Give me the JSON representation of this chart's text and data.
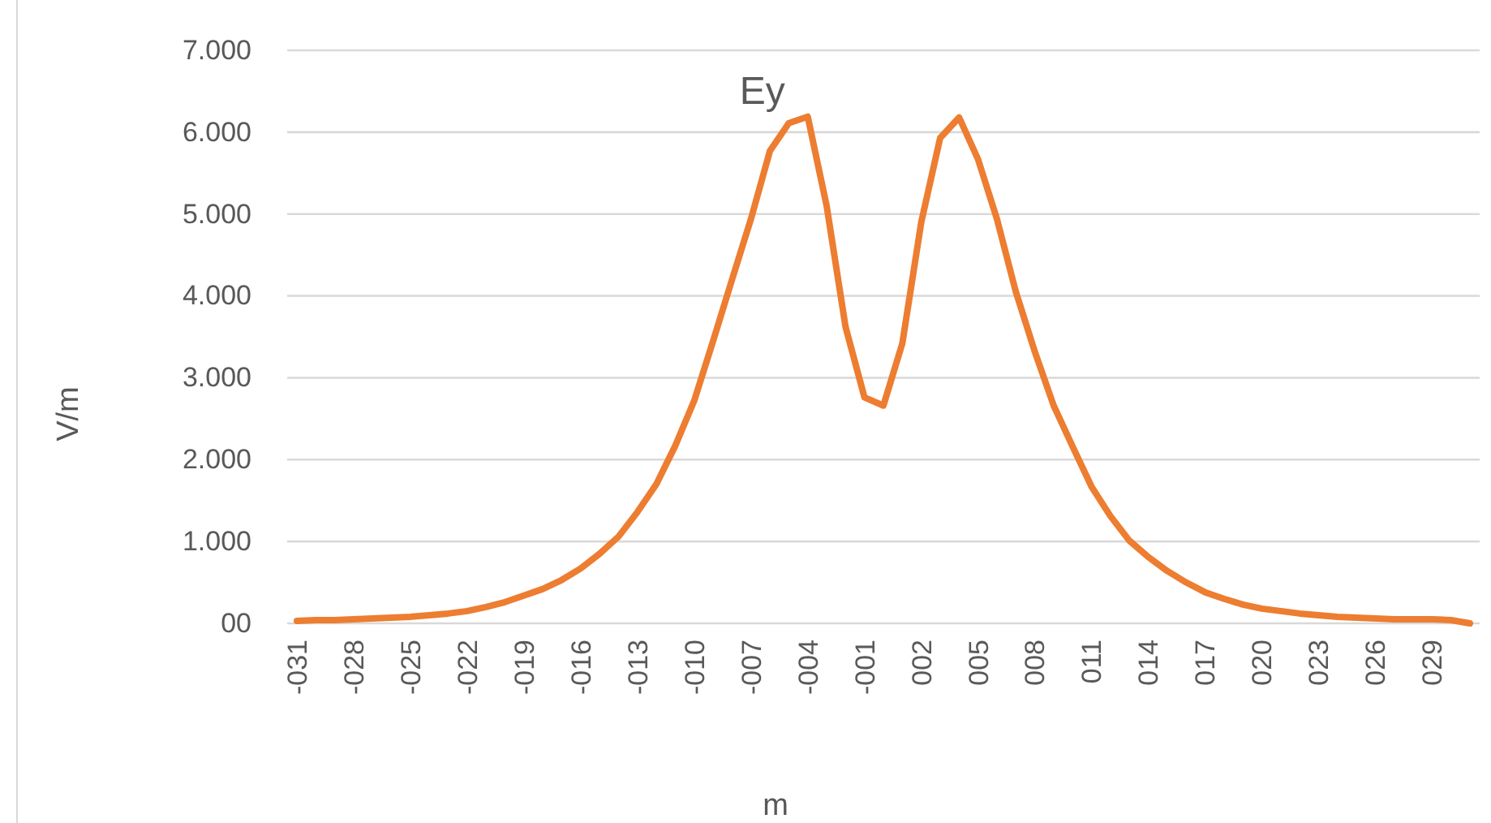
{
  "chart_data": {
    "type": "line",
    "xlabel": "m",
    "ylabel": "V/m",
    "categories": [
      "-031",
      null,
      null,
      "-028",
      null,
      null,
      "-025",
      null,
      null,
      "-022",
      null,
      null,
      "-019",
      null,
      null,
      "-016",
      null,
      null,
      "-013",
      null,
      null,
      "-010",
      null,
      null,
      "-007",
      null,
      null,
      "-004",
      null,
      null,
      "-001",
      null,
      null,
      "002",
      null,
      null,
      "005",
      null,
      null,
      "008",
      null,
      null,
      "011",
      null,
      null,
      "014",
      null,
      null,
      "017",
      null,
      null,
      "020",
      null,
      null,
      "023",
      null,
      null,
      "026",
      null,
      null,
      "029",
      null,
      null
    ],
    "series": [
      {
        "name": "Ey",
        "color": "#ed7d31",
        "values": [
          0.03,
          0.04,
          0.04,
          0.05,
          0.06,
          0.07,
          0.08,
          0.1,
          0.12,
          0.15,
          0.2,
          0.26,
          0.34,
          0.42,
          0.53,
          0.67,
          0.85,
          1.06,
          1.36,
          1.7,
          2.17,
          2.72,
          3.45,
          4.2,
          4.94,
          5.77,
          6.11,
          6.19,
          5.1,
          3.62,
          2.76,
          2.66,
          3.42,
          4.9,
          5.93,
          6.18,
          5.67,
          4.94,
          4.05,
          3.32,
          2.66,
          2.16,
          1.67,
          1.31,
          1.01,
          0.81,
          0.64,
          0.5,
          0.38,
          0.3,
          0.23,
          0.18,
          0.15,
          0.12,
          0.1,
          0.08,
          0.07,
          0.06,
          0.05,
          0.05,
          0.05,
          0.04,
          0.0
        ]
      }
    ],
    "ylim": [
      0,
      7
    ],
    "yticks": [
      {
        "value": 0,
        "label": "00"
      },
      {
        "value": 1,
        "label": "1.000"
      },
      {
        "value": 2,
        "label": "2.000"
      },
      {
        "value": 3,
        "label": "3.000"
      },
      {
        "value": 4,
        "label": "4.000"
      },
      {
        "value": 5,
        "label": "5.000"
      },
      {
        "value": 6,
        "label": "6.000"
      },
      {
        "value": 7,
        "label": "7.000"
      }
    ],
    "grid": "y",
    "legend": false,
    "marker": "none",
    "line_style": "solid"
  }
}
